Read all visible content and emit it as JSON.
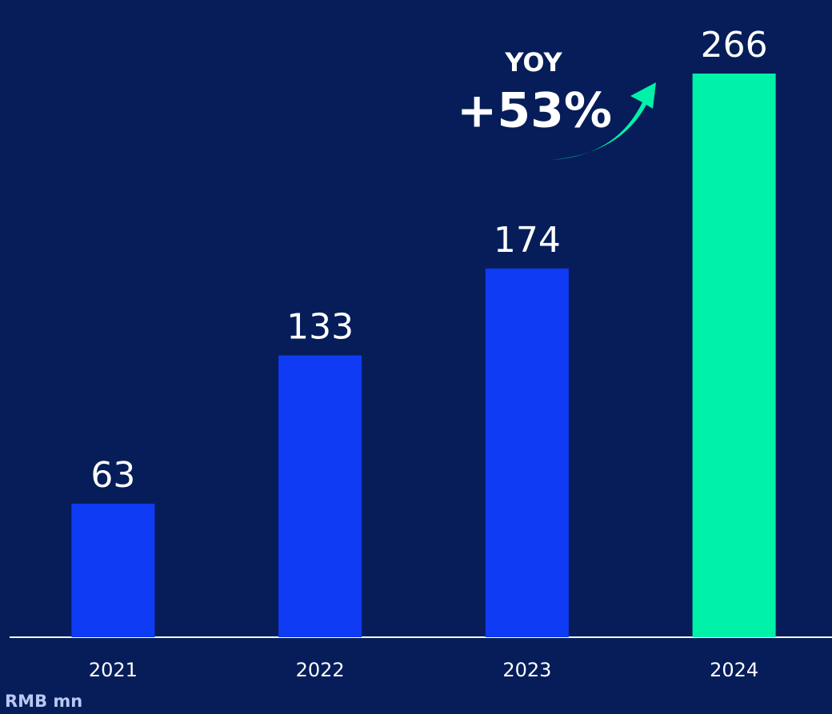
{
  "chart_data": {
    "type": "bar",
    "categories": [
      "2021",
      "2022",
      "2023",
      "2024"
    ],
    "values": [
      63,
      133,
      174,
      266
    ],
    "colors": [
      "#0f3bf5",
      "#0f3bf5",
      "#0f3bf5",
      "#00f2a9"
    ],
    "annotations": [
      "YOY",
      "+53%"
    ],
    "unit_label": "RMB mn"
  }
}
